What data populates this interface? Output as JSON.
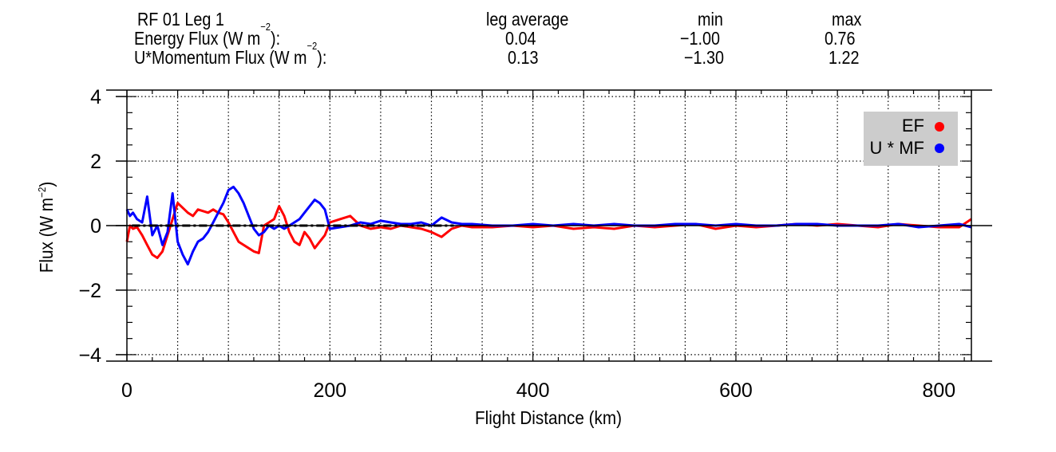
{
  "header": {
    "leg_title": "RF 01 Leg 1",
    "col_avg_label": "leg average",
    "col_min_label": "min",
    "col_max_label": "max",
    "rows": [
      {
        "label": "Energy Flux (W m",
        "sup": "−2",
        "label_tail": "):",
        "avg": "0.04",
        "min": "−1.00",
        "max": "0.76"
      },
      {
        "label": "U*Momentum Flux (W m",
        "sup": "−2",
        "label_tail": "):",
        "avg": "0.13",
        "min": "−1.30",
        "max": "1.22"
      }
    ]
  },
  "chart_data": {
    "type": "line",
    "xlabel": "Flight Distance (km)",
    "ylabel": "Flux (W m",
    "ylabel_sup": "−2",
    "ylabel_tail": ")",
    "xlim": [
      0,
      832
    ],
    "ylim": [
      -4.2,
      4.2
    ],
    "xticks": [
      0,
      200,
      400,
      600,
      800
    ],
    "xtick_labels": [
      "0",
      "200",
      "400",
      "600",
      "800"
    ],
    "yticks": [
      4,
      2,
      0,
      -2,
      -4
    ],
    "ytick_labels": [
      "4",
      "2",
      "0",
      "−2",
      "−4"
    ],
    "x_minor_step": 50,
    "y_minor_step": 0.5,
    "grid": "dotted",
    "legend_position": "top-right",
    "zero_reference_line": {
      "x": [
        5,
        322
      ],
      "y": 0,
      "style": "dash-dot",
      "color": "#000000"
    },
    "series": [
      {
        "name": "EF",
        "color": "#ff0000",
        "x": [
          0,
          3,
          6,
          10,
          15,
          20,
          25,
          30,
          35,
          40,
          45,
          50,
          55,
          60,
          65,
          70,
          75,
          80,
          85,
          90,
          95,
          100,
          105,
          110,
          115,
          120,
          125,
          130,
          135,
          140,
          145,
          150,
          155,
          160,
          165,
          170,
          175,
          180,
          185,
          190,
          195,
          200,
          210,
          220,
          230,
          240,
          250,
          260,
          270,
          280,
          290,
          300,
          310,
          320,
          330,
          340,
          360,
          380,
          400,
          420,
          440,
          460,
          480,
          500,
          520,
          540,
          560,
          580,
          600,
          620,
          640,
          660,
          680,
          700,
          720,
          740,
          760,
          780,
          800,
          820,
          832
        ],
        "y": [
          -0.5,
          0.0,
          -0.1,
          -0.05,
          -0.3,
          -0.6,
          -0.9,
          -1.0,
          -0.8,
          -0.3,
          0.2,
          0.7,
          0.55,
          0.4,
          0.3,
          0.5,
          0.45,
          0.4,
          0.5,
          0.4,
          0.35,
          0.1,
          -0.2,
          -0.5,
          -0.6,
          -0.7,
          -0.8,
          -0.85,
          0.0,
          0.1,
          0.2,
          0.6,
          0.3,
          -0.2,
          -0.5,
          -0.6,
          -0.2,
          -0.4,
          -0.7,
          -0.5,
          -0.3,
          0.1,
          0.2,
          0.3,
          0.0,
          -0.1,
          -0.05,
          -0.1,
          0.0,
          -0.05,
          -0.1,
          -0.2,
          -0.35,
          -0.1,
          0.0,
          -0.05,
          -0.05,
          0.0,
          -0.05,
          0.0,
          -0.1,
          -0.05,
          -0.1,
          0.0,
          -0.05,
          0.0,
          0.05,
          -0.1,
          0.0,
          -0.05,
          0.0,
          0.05,
          0.0,
          0.05,
          0.0,
          -0.05,
          0.05,
          0.0,
          -0.05,
          -0.05,
          0.2
        ]
      },
      {
        "name": "U * MF",
        "color": "#0000ff",
        "x": [
          0,
          3,
          6,
          10,
          15,
          20,
          25,
          30,
          35,
          40,
          45,
          50,
          55,
          60,
          65,
          70,
          75,
          80,
          85,
          90,
          95,
          100,
          105,
          110,
          115,
          120,
          125,
          130,
          135,
          140,
          145,
          150,
          155,
          160,
          165,
          170,
          175,
          180,
          185,
          190,
          195,
          200,
          210,
          220,
          230,
          240,
          250,
          260,
          270,
          280,
          290,
          300,
          310,
          320,
          330,
          340,
          360,
          380,
          400,
          420,
          440,
          460,
          480,
          500,
          520,
          540,
          560,
          580,
          600,
          620,
          640,
          660,
          680,
          700,
          720,
          740,
          760,
          780,
          800,
          820,
          832
        ],
        "y": [
          0.5,
          0.3,
          0.4,
          0.2,
          0.1,
          0.9,
          -0.3,
          0.0,
          -0.6,
          -0.2,
          1.0,
          -0.5,
          -0.9,
          -1.2,
          -0.8,
          -0.5,
          -0.4,
          -0.2,
          0.1,
          0.4,
          0.7,
          1.1,
          1.2,
          1.0,
          0.7,
          0.3,
          -0.1,
          -0.3,
          -0.2,
          0.0,
          -0.1,
          0.0,
          -0.1,
          0.0,
          0.1,
          0.2,
          0.4,
          0.6,
          0.8,
          0.7,
          0.5,
          -0.1,
          -0.05,
          0.0,
          0.1,
          0.05,
          0.15,
          0.1,
          0.05,
          0.05,
          0.1,
          0.0,
          0.25,
          0.1,
          0.05,
          0.05,
          0.0,
          0.0,
          0.05,
          0.0,
          0.05,
          0.0,
          0.05,
          0.0,
          0.0,
          0.05,
          0.05,
          0.0,
          0.05,
          0.0,
          0.0,
          0.05,
          0.05,
          0.0,
          0.0,
          0.0,
          0.05,
          -0.05,
          0.0,
          0.05,
          -0.05
        ]
      }
    ]
  }
}
